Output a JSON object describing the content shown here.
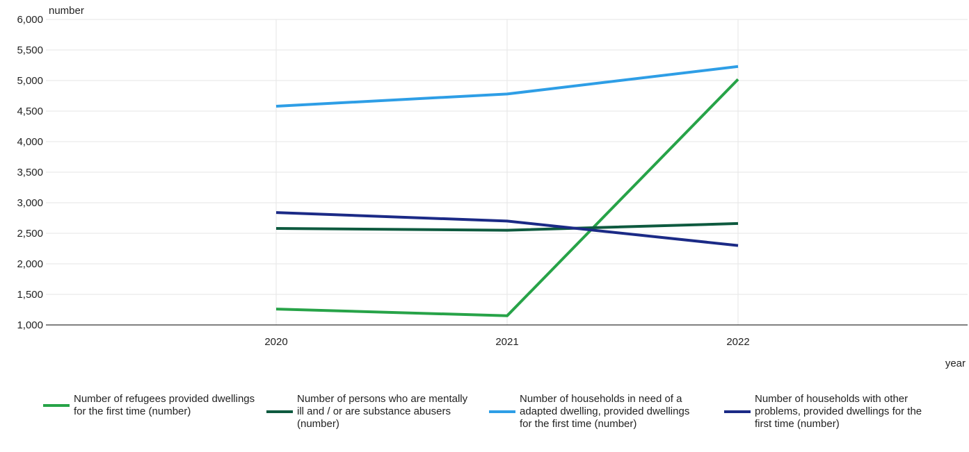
{
  "chart_data": {
    "type": "line",
    "x": [
      "2020",
      "2021",
      "2022"
    ],
    "ylabel": "number",
    "xlabel": "year",
    "ylim": [
      1000,
      6000
    ],
    "yticks": [
      "1,000",
      "1,500",
      "2,000",
      "2,500",
      "3,000",
      "3,500",
      "4,000",
      "4,500",
      "5,000",
      "5,500",
      "6,000"
    ],
    "grid": true,
    "legend_position": "bottom",
    "series": [
      {
        "name": "Number of refugees provided dwellings for the first time (number)",
        "color": "#27a348",
        "values": [
          1260,
          1150,
          5020
        ]
      },
      {
        "name": "Number of persons who are mentally ill and / or are substance abusers (number)",
        "color": "#0e5a3f",
        "values": [
          2580,
          2550,
          2660
        ]
      },
      {
        "name": "Number of households in need of a adapted dwelling, provided dwellings for the first time (number)",
        "color": "#2e9ee6",
        "values": [
          4580,
          4780,
          5230
        ]
      },
      {
        "name": "Number of households with other problems, provided dwellings for the first time (number)",
        "color": "#1b2a86",
        "values": [
          2840,
          2700,
          2300
        ]
      }
    ]
  }
}
